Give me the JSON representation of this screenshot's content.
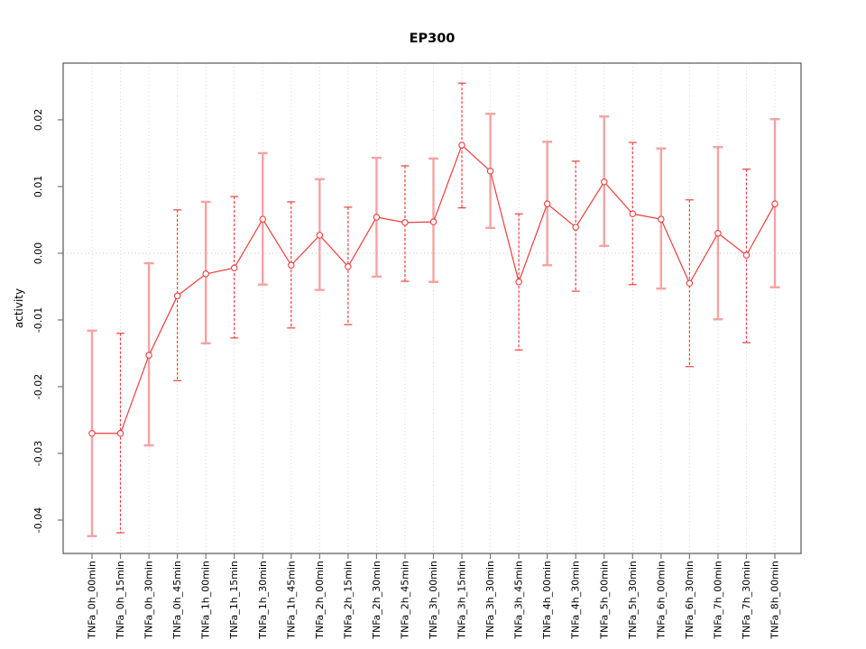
{
  "page": {
    "background": "#ffffff"
  },
  "chart_data": {
    "type": "line",
    "subtype": "points-with-error-bars",
    "title": "EP300",
    "xlabel": "",
    "ylabel": "activity",
    "legend": "none",
    "grid": {
      "vertical": "dotted line at every category",
      "zero_line": "dotted horizontal at y=0"
    },
    "ylim": [
      -0.045,
      0.0285
    ],
    "ytick_labels": [
      "0.02",
      "0.01",
      "0.00",
      "-0.01",
      "-0.02",
      "-0.03",
      "-0.04"
    ],
    "ytick_values": [
      0.02,
      0.01,
      0.0,
      -0.01,
      -0.02,
      -0.03,
      -0.04
    ],
    "categories": [
      "TNFa_0h_00min",
      "TNFa_0h_15min",
      "TNFa_0h_30min",
      "TNFa_0h_45min",
      "TNFa_1h_00min",
      "TNFa_1h_15min",
      "TNFa_1h_30min",
      "TNFa_1h_45min",
      "TNFa_2h_00min",
      "TNFa_2h_15min",
      "TNFa_2h_30min",
      "TNFa_2h_45min",
      "TNFa_3h_00min",
      "TNFa_3h_15min",
      "TNFa_3h_30min",
      "TNFa_3h_45min",
      "TNFa_4h_00min",
      "TNFa_4h_30min",
      "TNFa_5h_00min",
      "TNFa_5h_30min",
      "TNFa_6h_00min",
      "TNFa_6h_30min",
      "TNFa_7h_00min",
      "TNFa_7h_30min",
      "TNFa_8h_00min"
    ],
    "series": [
      {
        "name": "EP300 activity",
        "values": [
          -0.027,
          -0.027,
          -0.0153,
          -0.0064,
          -0.0031,
          -0.0022,
          0.0051,
          -0.0018,
          0.0027,
          -0.002,
          0.0054,
          0.0046,
          0.0047,
          0.0162,
          0.0123,
          -0.0043,
          0.0074,
          0.0039,
          0.0107,
          0.0059,
          0.0051,
          -0.0045,
          0.003,
          -0.0003,
          0.0074
        ],
        "lower": [
          -0.0424,
          -0.0419,
          -0.0288,
          -0.0191,
          -0.0135,
          -0.0127,
          -0.0047,
          -0.0112,
          -0.0055,
          -0.0107,
          -0.0035,
          -0.0042,
          -0.0043,
          0.0068,
          0.0038,
          -0.0145,
          -0.0018,
          -0.0057,
          0.0011,
          -0.0047,
          -0.0053,
          -0.017,
          -0.0099,
          -0.0134,
          -0.0051
        ],
        "upper": [
          -0.0116,
          -0.012,
          -0.0015,
          0.0065,
          0.0077,
          0.0085,
          0.015,
          0.0077,
          0.0111,
          0.0069,
          0.0143,
          0.0131,
          0.0142,
          0.0255,
          0.0209,
          0.0059,
          0.0167,
          0.0138,
          0.0205,
          0.0166,
          0.0157,
          0.008,
          0.0159,
          0.0126,
          0.0201
        ]
      }
    ],
    "errorbar_styles": [
      "solid",
      "dashed",
      "solid",
      "dashed",
      "solid",
      "dashed",
      "solid",
      "dashed",
      "solid",
      "dashed",
      "solid",
      "dashed",
      "solid",
      "dashed",
      "solid",
      "dashed",
      "solid",
      "dashed",
      "solid",
      "dashed",
      "solid",
      "dashed",
      "solid",
      "dashed",
      "solid"
    ],
    "colors": {
      "line": "#ee3c3c",
      "marker_stroke": "#ee3c3c",
      "marker_fill": "#ffffff",
      "errorbar_solid": "#f6a2a2",
      "errorbar_dashed": "#ee4040",
      "grid": "#d9d9d9",
      "zero_line": "#e8baba",
      "axis_box": "#555555",
      "tick": "#777777",
      "text": "#000000"
    }
  }
}
